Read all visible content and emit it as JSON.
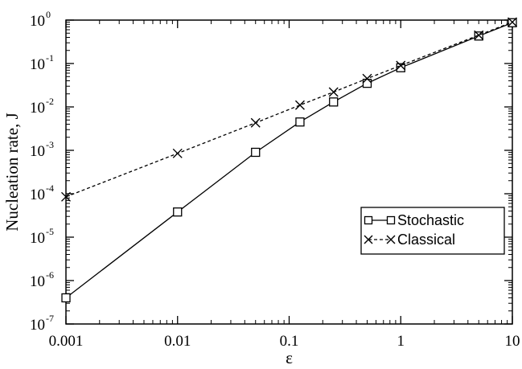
{
  "chart_data": {
    "type": "line",
    "xscale": "log",
    "yscale": "log",
    "xlim": [
      0.001,
      10
    ],
    "ylim": [
      1e-07,
      1
    ],
    "xlabel": "ε",
    "ylabel": "Nucleation rate,  J",
    "grid": false,
    "legend_position": "center-right",
    "x_ticks": [
      {
        "value": 0.001,
        "label": "0.001"
      },
      {
        "value": 0.01,
        "label": "0.01"
      },
      {
        "value": 0.1,
        "label": "0.1"
      },
      {
        "value": 1,
        "label": "1"
      },
      {
        "value": 10,
        "label": "10"
      }
    ],
    "y_ticks": [
      {
        "exp": -7,
        "base": "10",
        "sup": "-7"
      },
      {
        "exp": -6,
        "base": "10",
        "sup": "-6"
      },
      {
        "exp": -5,
        "base": "10",
        "sup": "-5"
      },
      {
        "exp": -4,
        "base": "10",
        "sup": "-4"
      },
      {
        "exp": -3,
        "base": "10",
        "sup": "-3"
      },
      {
        "exp": -2,
        "base": "10",
        "sup": "-2"
      },
      {
        "exp": -1,
        "base": "10",
        "sup": "-1"
      },
      {
        "exp": 0,
        "base": "10",
        "sup": "0"
      }
    ],
    "series": [
      {
        "name": "Stochastic",
        "marker": "square",
        "line_style": "solid",
        "x": [
          0.001,
          0.01,
          0.05,
          0.125,
          0.25,
          0.5,
          1,
          5,
          10
        ],
        "y": [
          4e-07,
          3.8e-05,
          0.0009,
          0.0045,
          0.013,
          0.035,
          0.08,
          0.43,
          0.87
        ]
      },
      {
        "name": "Classical",
        "marker": "cross",
        "line_style": "dashed",
        "x": [
          0.001,
          0.01,
          0.05,
          0.125,
          0.25,
          0.5,
          1,
          5,
          10
        ],
        "y": [
          8.5e-05,
          0.00085,
          0.0043,
          0.011,
          0.022,
          0.045,
          0.09,
          0.45,
          0.9
        ]
      }
    ],
    "colors": {
      "axis": "#000000",
      "line": "#000000",
      "background": "#ffffff"
    }
  }
}
